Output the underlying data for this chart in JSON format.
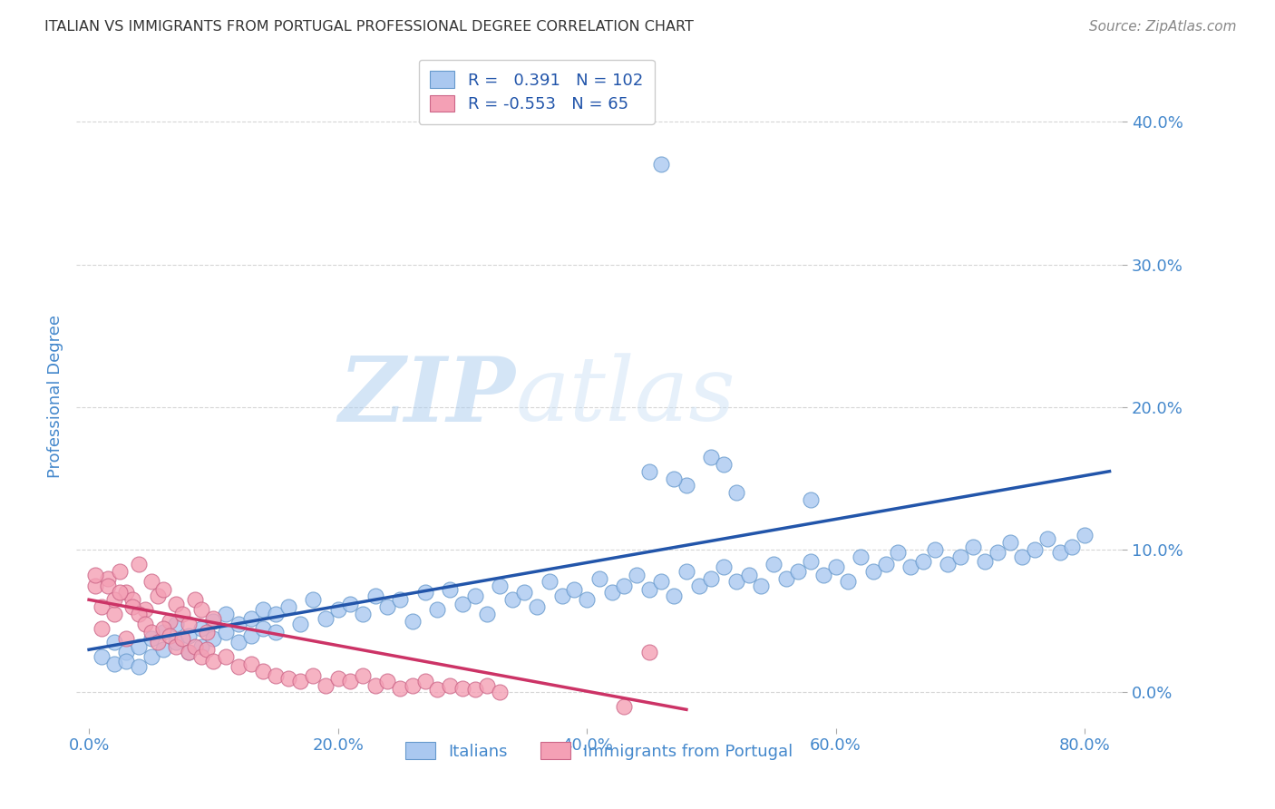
{
  "title": "ITALIAN VS IMMIGRANTS FROM PORTUGAL PROFESSIONAL DEGREE CORRELATION CHART",
  "source": "Source: ZipAtlas.com",
  "xlabel_ticks": [
    "0.0%",
    "20.0%",
    "40.0%",
    "60.0%",
    "80.0%"
  ],
  "xlabel_vals": [
    0.0,
    0.2,
    0.4,
    0.6,
    0.8
  ],
  "ylabel": "Professional Degree",
  "ylabel_ticks": [
    "0.0%",
    "10.0%",
    "20.0%",
    "30.0%",
    "40.0%"
  ],
  "ylabel_vals": [
    0.0,
    0.1,
    0.2,
    0.3,
    0.4
  ],
  "xlim": [
    -0.01,
    0.83
  ],
  "ylim": [
    -0.025,
    0.44
  ],
  "blue_R": 0.391,
  "blue_N": 102,
  "pink_R": -0.553,
  "pink_N": 65,
  "blue_color": "#aac8f0",
  "blue_edge_color": "#6699cc",
  "blue_line_color": "#2255aa",
  "pink_color": "#f4a0b5",
  "pink_edge_color": "#cc6688",
  "pink_line_color": "#cc3366",
  "legend_blue_label": "Italians",
  "legend_pink_label": "Immigrants from Portugal",
  "watermark_zip": "ZIP",
  "watermark_atlas": "atlas",
  "background_color": "#ffffff",
  "grid_color": "#cccccc",
  "title_color": "#333333",
  "axis_tick_color": "#4488cc",
  "ylabel_text_color": "#4488cc",
  "blue_scatter_x": [
    0.01,
    0.02,
    0.02,
    0.03,
    0.03,
    0.04,
    0.04,
    0.05,
    0.05,
    0.06,
    0.06,
    0.07,
    0.07,
    0.08,
    0.08,
    0.09,
    0.09,
    0.1,
    0.1,
    0.11,
    0.11,
    0.12,
    0.12,
    0.13,
    0.13,
    0.14,
    0.14,
    0.15,
    0.15,
    0.16,
    0.17,
    0.18,
    0.19,
    0.2,
    0.21,
    0.22,
    0.23,
    0.24,
    0.25,
    0.26,
    0.27,
    0.28,
    0.29,
    0.3,
    0.31,
    0.32,
    0.33,
    0.34,
    0.35,
    0.36,
    0.37,
    0.38,
    0.39,
    0.4,
    0.41,
    0.42,
    0.43,
    0.44,
    0.45,
    0.46,
    0.47,
    0.48,
    0.49,
    0.5,
    0.51,
    0.52,
    0.53,
    0.54,
    0.55,
    0.56,
    0.57,
    0.58,
    0.59,
    0.6,
    0.61,
    0.62,
    0.63,
    0.64,
    0.65,
    0.66,
    0.67,
    0.68,
    0.69,
    0.7,
    0.71,
    0.72,
    0.73,
    0.74,
    0.75,
    0.76,
    0.77,
    0.78,
    0.79,
    0.8,
    0.45,
    0.48,
    0.5,
    0.52,
    0.47,
    0.51,
    0.58,
    0.46
  ],
  "blue_scatter_y": [
    0.025,
    0.02,
    0.035,
    0.028,
    0.022,
    0.032,
    0.018,
    0.038,
    0.025,
    0.042,
    0.03,
    0.035,
    0.048,
    0.04,
    0.028,
    0.045,
    0.032,
    0.05,
    0.038,
    0.055,
    0.042,
    0.048,
    0.035,
    0.052,
    0.04,
    0.045,
    0.058,
    0.055,
    0.042,
    0.06,
    0.048,
    0.065,
    0.052,
    0.058,
    0.062,
    0.055,
    0.068,
    0.06,
    0.065,
    0.05,
    0.07,
    0.058,
    0.072,
    0.062,
    0.068,
    0.055,
    0.075,
    0.065,
    0.07,
    0.06,
    0.078,
    0.068,
    0.072,
    0.065,
    0.08,
    0.07,
    0.075,
    0.082,
    0.072,
    0.078,
    0.068,
    0.085,
    0.075,
    0.08,
    0.088,
    0.078,
    0.082,
    0.075,
    0.09,
    0.08,
    0.085,
    0.092,
    0.082,
    0.088,
    0.078,
    0.095,
    0.085,
    0.09,
    0.098,
    0.088,
    0.092,
    0.1,
    0.09,
    0.095,
    0.102,
    0.092,
    0.098,
    0.105,
    0.095,
    0.1,
    0.108,
    0.098,
    0.102,
    0.11,
    0.155,
    0.145,
    0.165,
    0.14,
    0.15,
    0.16,
    0.135,
    0.37
  ],
  "pink_scatter_x": [
    0.005,
    0.01,
    0.015,
    0.02,
    0.025,
    0.03,
    0.035,
    0.04,
    0.045,
    0.05,
    0.055,
    0.06,
    0.065,
    0.07,
    0.075,
    0.08,
    0.085,
    0.09,
    0.095,
    0.1,
    0.005,
    0.01,
    0.015,
    0.02,
    0.025,
    0.03,
    0.035,
    0.04,
    0.045,
    0.05,
    0.055,
    0.06,
    0.065,
    0.07,
    0.075,
    0.08,
    0.085,
    0.09,
    0.095,
    0.1,
    0.11,
    0.12,
    0.13,
    0.14,
    0.15,
    0.16,
    0.17,
    0.18,
    0.19,
    0.2,
    0.21,
    0.22,
    0.23,
    0.24,
    0.25,
    0.26,
    0.27,
    0.28,
    0.29,
    0.3,
    0.31,
    0.32,
    0.33,
    0.43,
    0.45
  ],
  "pink_scatter_y": [
    0.075,
    0.06,
    0.08,
    0.055,
    0.085,
    0.07,
    0.065,
    0.09,
    0.058,
    0.078,
    0.068,
    0.072,
    0.05,
    0.062,
    0.055,
    0.048,
    0.065,
    0.058,
    0.042,
    0.052,
    0.082,
    0.045,
    0.075,
    0.065,
    0.07,
    0.038,
    0.06,
    0.055,
    0.048,
    0.042,
    0.035,
    0.045,
    0.04,
    0.032,
    0.038,
    0.028,
    0.032,
    0.025,
    0.03,
    0.022,
    0.025,
    0.018,
    0.02,
    0.015,
    0.012,
    0.01,
    0.008,
    0.012,
    0.005,
    0.01,
    0.008,
    0.012,
    0.005,
    0.008,
    0.003,
    0.005,
    0.008,
    0.002,
    0.005,
    0.003,
    0.002,
    0.005,
    0.0,
    -0.01,
    0.028
  ],
  "blue_line_x0": 0.0,
  "blue_line_x1": 0.82,
  "blue_line_y0": 0.03,
  "blue_line_y1": 0.155,
  "pink_line_x0": 0.0,
  "pink_line_x1": 0.48,
  "pink_line_y0": 0.065,
  "pink_line_y1": -0.012
}
